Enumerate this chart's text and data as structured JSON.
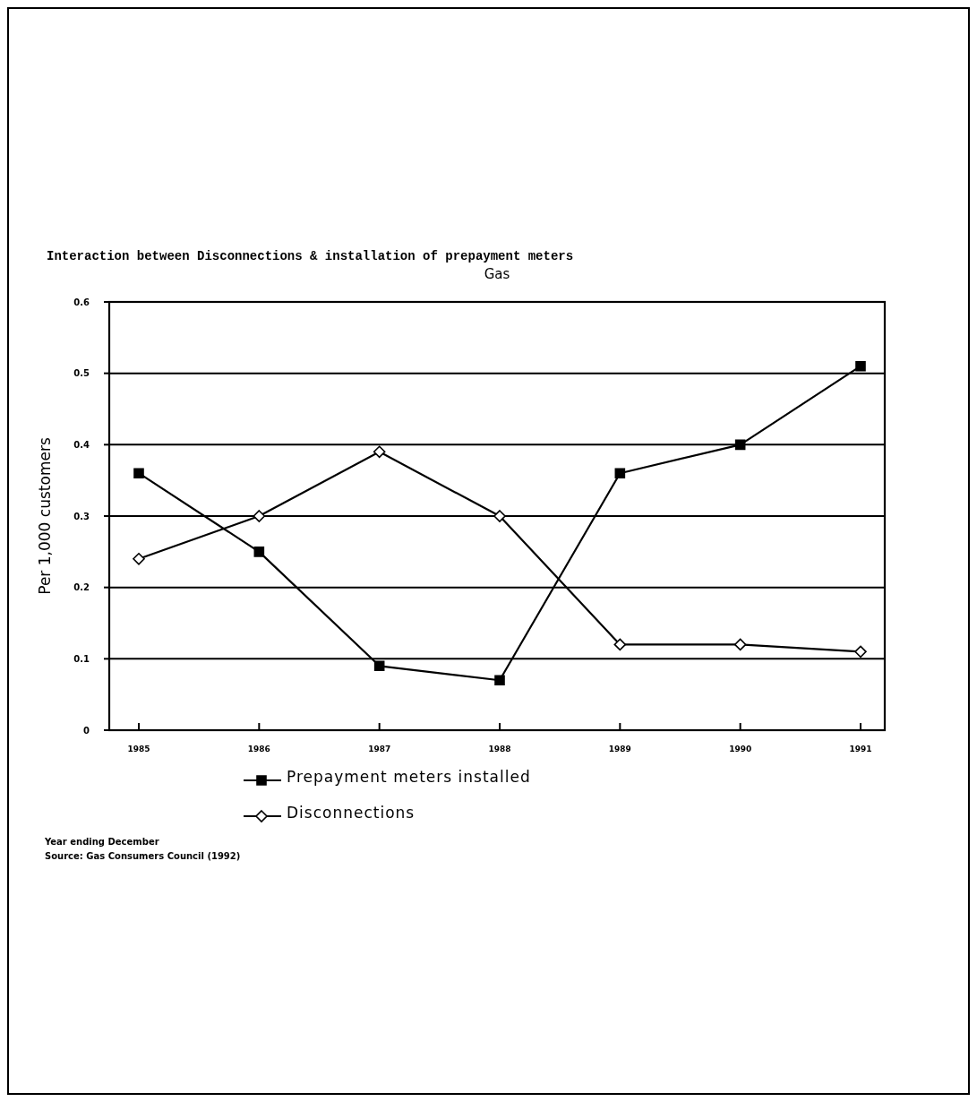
{
  "chart_data": {
    "type": "line",
    "title": "Interaction between Disconnections & installation of prepayment meters",
    "subtitle": "Gas",
    "ylabel": "Per 1,000 customers",
    "categories": [
      "1985",
      "1986",
      "1987",
      "1988",
      "1989",
      "1990",
      "1991"
    ],
    "series": [
      {
        "name": "Prepayment meters installed",
        "color": "#000000",
        "marker": "square",
        "values": [
          0.36,
          0.25,
          0.09,
          0.07,
          0.36,
          0.4,
          0.51
        ]
      },
      {
        "name": "Disconnections",
        "color": "#000000",
        "marker": "diamond",
        "values": [
          0.24,
          0.3,
          0.39,
          0.3,
          0.12,
          0.12,
          0.11
        ]
      }
    ],
    "ylim": [
      0,
      0.6
    ],
    "yticks": [
      0,
      0.1,
      0.2,
      0.3,
      0.4,
      0.5,
      0.6
    ],
    "grid": "y",
    "legend": "bottom",
    "line_style": "solid",
    "annotations": [
      "Year ending December",
      "Source: Gas Consumers Council (1992)"
    ]
  }
}
